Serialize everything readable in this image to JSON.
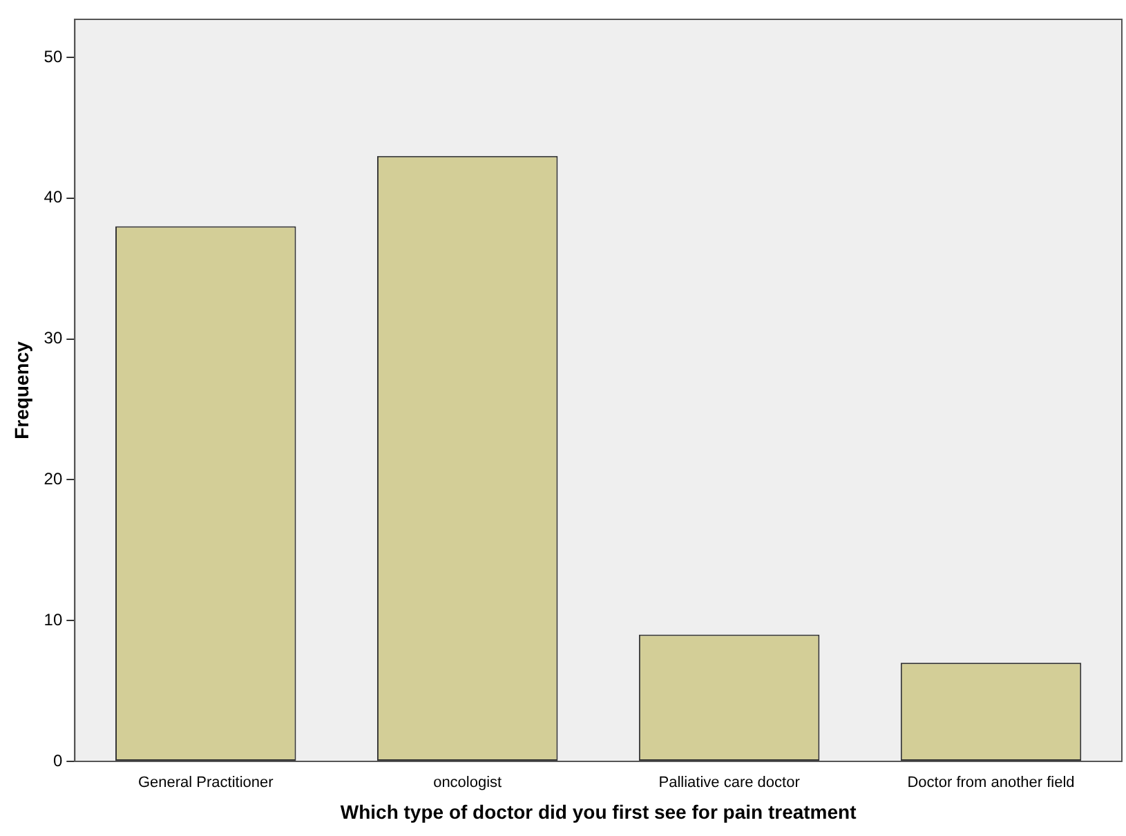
{
  "chart_data": {
    "type": "bar",
    "xlabel": "Which type of doctor did you first see for pain treatment",
    "ylabel": "Frequency",
    "categories": [
      "General Practitioner",
      "oncologist",
      "Palliative care doctor",
      "Doctor from another field"
    ],
    "values": [
      38,
      43,
      9,
      7
    ],
    "color": "#d3ce97",
    "ylim": [
      0,
      52.7
    ],
    "yticks": [
      0,
      10,
      20,
      30,
      40,
      50
    ],
    "grid": false,
    "legend": false
  }
}
